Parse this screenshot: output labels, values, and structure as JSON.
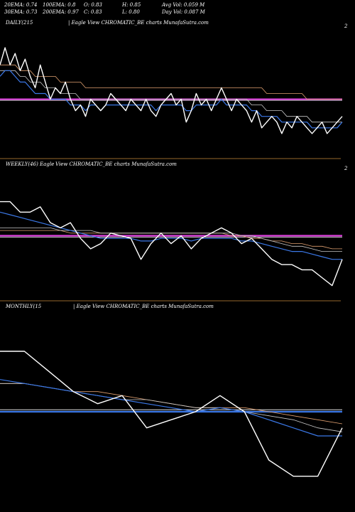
{
  "header": {
    "row1": [
      {
        "label": "20EMA: 0.74"
      },
      {
        "label": "100EMA: 0.8"
      },
      {
        "label": "O: 0.83"
      },
      {
        "label": "H: 0.85"
      },
      {
        "label": "Avg Vol: 0.059 M"
      }
    ],
    "row2": [
      {
        "label": "30EMA: 0.73"
      },
      {
        "label": "200EMA: 0.97"
      },
      {
        "label": "C: 0.83"
      },
      {
        "label": "L: 0.80"
      },
      {
        "label": "Day Vol: 0.087 M"
      }
    ]
  },
  "colors": {
    "price": "#ffffff",
    "ema_fast": "#3b78e7",
    "ema_slow": "#c8c8c8",
    "ema_long": "#e0a070",
    "reference": "#e040e0",
    "reference_monthly": "#3b78e7",
    "separator": "#c88a3a"
  },
  "chart_data": [
    {
      "type": "line",
      "title": "DAILY(215",
      "caption": "| Eagle   View  CHROMATIC_BE charts MunafaSutra.com",
      "corner_label": "2",
      "series": [
        {
          "values": [
            0.8,
            0.83,
            0.8,
            0.82,
            0.79,
            0.81,
            0.78,
            0.76,
            0.8,
            0.77,
            0.74,
            0.76,
            0.75,
            0.77,
            0.74,
            0.72,
            0.73,
            0.71,
            0.74,
            0.73,
            0.72,
            0.73,
            0.75,
            0.74,
            0.73,
            0.72,
            0.74,
            0.73,
            0.72,
            0.74,
            0.72,
            0.71,
            0.73,
            0.74,
            0.75,
            0.73,
            0.74,
            0.7,
            0.72,
            0.75,
            0.73,
            0.74,
            0.72,
            0.74,
            0.76,
            0.74,
            0.72,
            0.74,
            0.73,
            0.72,
            0.7,
            0.72,
            0.69,
            0.7,
            0.71,
            0.7,
            0.68,
            0.7,
            0.69,
            0.71,
            0.7,
            0.69,
            0.68,
            0.69,
            0.7,
            0.68,
            0.69,
            0.7,
            0.71
          ]
        },
        {
          "values": [
            0.78,
            0.79,
            0.79,
            0.78,
            0.77,
            0.77,
            0.76,
            0.75,
            0.75,
            0.75,
            0.74,
            0.74,
            0.74,
            0.74,
            0.73,
            0.73,
            0.73,
            0.72,
            0.73,
            0.73,
            0.72,
            0.73,
            0.73,
            0.73,
            0.73,
            0.73,
            0.73,
            0.73,
            0.73,
            0.73,
            0.73,
            0.72,
            0.73,
            0.73,
            0.73,
            0.73,
            0.73,
            0.72,
            0.72,
            0.73,
            0.73,
            0.73,
            0.73,
            0.73,
            0.74,
            0.73,
            0.73,
            0.73,
            0.73,
            0.73,
            0.72,
            0.72,
            0.71,
            0.71,
            0.71,
            0.71,
            0.7,
            0.7,
            0.7,
            0.7,
            0.7,
            0.7,
            0.69,
            0.69,
            0.69,
            0.69,
            0.69,
            0.69,
            0.7
          ]
        },
        {
          "values": [
            0.79,
            0.79,
            0.79,
            0.79,
            0.78,
            0.78,
            0.77,
            0.77,
            0.77,
            0.76,
            0.76,
            0.76,
            0.75,
            0.75,
            0.75,
            0.75,
            0.74,
            0.74,
            0.74,
            0.74,
            0.74,
            0.74,
            0.74,
            0.74,
            0.74,
            0.74,
            0.74,
            0.74,
            0.74,
            0.74,
            0.74,
            0.74,
            0.74,
            0.74,
            0.74,
            0.74,
            0.74,
            0.74,
            0.74,
            0.74,
            0.74,
            0.74,
            0.74,
            0.74,
            0.74,
            0.74,
            0.74,
            0.74,
            0.74,
            0.74,
            0.73,
            0.73,
            0.73,
            0.72,
            0.72,
            0.72,
            0.72,
            0.71,
            0.71,
            0.71,
            0.71,
            0.71,
            0.7,
            0.7,
            0.7,
            0.7,
            0.7,
            0.7,
            0.7
          ]
        },
        {
          "values": [
            0.8,
            0.8,
            0.8,
            0.8,
            0.79,
            0.79,
            0.79,
            0.78,
            0.78,
            0.78,
            0.78,
            0.78,
            0.77,
            0.77,
            0.77,
            0.77,
            0.77,
            0.76,
            0.76,
            0.76,
            0.76,
            0.76,
            0.76,
            0.76,
            0.76,
            0.76,
            0.76,
            0.76,
            0.76,
            0.76,
            0.76,
            0.76,
            0.76,
            0.76,
            0.76,
            0.76,
            0.76,
            0.76,
            0.76,
            0.76,
            0.76,
            0.76,
            0.76,
            0.76,
            0.76,
            0.76,
            0.76,
            0.76,
            0.76,
            0.76,
            0.76,
            0.76,
            0.76,
            0.75,
            0.75,
            0.75,
            0.75,
            0.75,
            0.75,
            0.75,
            0.75,
            0.74,
            0.74,
            0.74,
            0.74,
            0.74,
            0.74,
            0.74,
            0.74
          ]
        }
      ],
      "reference_lines": [
        0.74,
        0.738
      ],
      "ylim": [
        0.64,
        0.86
      ]
    },
    {
      "type": "line",
      "title": "WEEKLY(46) Eagle",
      "caption": "View  CHROMATIC_BE charts MunafaSutra.com",
      "corner_label": "2",
      "series": [
        {
          "values": [
            0.92,
            0.92,
            0.88,
            0.88,
            0.9,
            0.84,
            0.82,
            0.84,
            0.78,
            0.74,
            0.76,
            0.8,
            0.79,
            0.78,
            0.7,
            0.76,
            0.8,
            0.76,
            0.79,
            0.74,
            0.78,
            0.8,
            0.82,
            0.8,
            0.76,
            0.78,
            0.74,
            0.7,
            0.68,
            0.68,
            0.66,
            0.66,
            0.63,
            0.6,
            0.7
          ]
        },
        {
          "values": [
            0.88,
            0.87,
            0.86,
            0.85,
            0.84,
            0.83,
            0.82,
            0.81,
            0.8,
            0.79,
            0.78,
            0.78,
            0.78,
            0.78,
            0.77,
            0.77,
            0.78,
            0.78,
            0.78,
            0.77,
            0.78,
            0.78,
            0.78,
            0.78,
            0.77,
            0.77,
            0.76,
            0.75,
            0.74,
            0.73,
            0.73,
            0.72,
            0.71,
            0.7,
            0.7
          ]
        },
        {
          "values": [
            0.82,
            0.82,
            0.82,
            0.82,
            0.82,
            0.82,
            0.81,
            0.81,
            0.81,
            0.81,
            0.8,
            0.8,
            0.8,
            0.8,
            0.8,
            0.8,
            0.8,
            0.8,
            0.8,
            0.8,
            0.8,
            0.8,
            0.8,
            0.8,
            0.79,
            0.79,
            0.78,
            0.77,
            0.76,
            0.75,
            0.75,
            0.74,
            0.73,
            0.73,
            0.73
          ]
        },
        {
          "values": [
            0.81,
            0.81,
            0.81,
            0.81,
            0.81,
            0.81,
            0.81,
            0.8,
            0.8,
            0.8,
            0.8,
            0.8,
            0.8,
            0.8,
            0.8,
            0.8,
            0.8,
            0.8,
            0.8,
            0.8,
            0.8,
            0.8,
            0.8,
            0.79,
            0.79,
            0.78,
            0.78,
            0.77,
            0.77,
            0.76,
            0.76,
            0.75,
            0.75,
            0.74,
            0.74
          ]
        }
      ],
      "reference_lines": [
        0.79,
        0.785
      ],
      "ylim": [
        0.55,
        1.03
      ]
    },
    {
      "type": "line",
      "title": "MONTHLY(15",
      "caption": "| Eagle   View  CHROMATIC_BE charts MunafaSutra.com",
      "corner_label": "",
      "series": [
        {
          "values": [
            1.05,
            1.05,
            1.0,
            0.95,
            0.92,
            0.94,
            0.86,
            0.88,
            0.9,
            0.94,
            0.9,
            0.78,
            0.74,
            0.74,
            0.86
          ]
        },
        {
          "values": [
            0.98,
            0.97,
            0.96,
            0.95,
            0.94,
            0.93,
            0.92,
            0.91,
            0.9,
            0.91,
            0.9,
            0.88,
            0.86,
            0.84,
            0.84
          ]
        },
        {
          "values": [
            0.97,
            0.97,
            0.96,
            0.95,
            0.94,
            0.93,
            0.93,
            0.92,
            0.91,
            0.91,
            0.9,
            0.89,
            0.88,
            0.86,
            0.85
          ]
        },
        {
          "values": [
            0.97,
            0.97,
            0.96,
            0.95,
            0.95,
            0.94,
            0.93,
            0.92,
            0.91,
            0.91,
            0.91,
            0.9,
            0.89,
            0.88,
            0.87
          ]
        }
      ],
      "reference_lines": [
        0.9,
        0.905
      ],
      "ylim": [
        0.66,
        1.14
      ]
    }
  ]
}
